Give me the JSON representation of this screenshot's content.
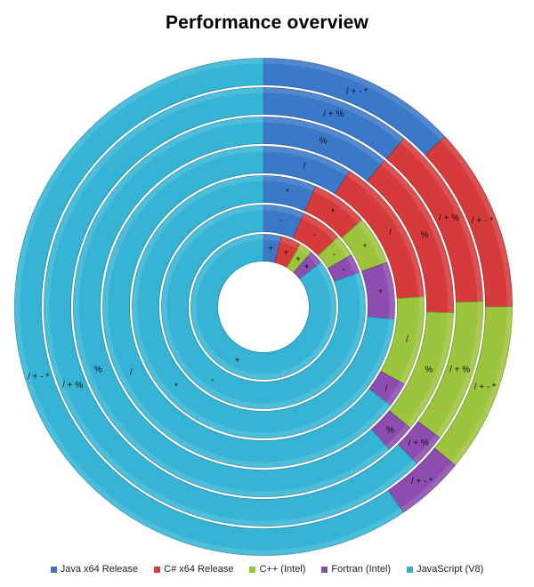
{
  "chart_data": {
    "type": "donut",
    "title": "Performance overview",
    "categories": [
      "+",
      "-",
      "*",
      "/",
      "%",
      "/ + %",
      "/ + - *"
    ],
    "series": [
      {
        "name": "Java x64 Release",
        "color": "#3a78c8",
        "values": [
          4,
          6.5,
          6.5,
          9,
          11,
          11,
          13
        ]
      },
      {
        "name": "C# x64 Release",
        "color": "#d63a3a",
        "values": [
          4.5,
          6.5,
          7,
          15,
          14.5,
          13.5,
          12
        ]
      },
      {
        "name": "C++ (Intel)",
        "color": "#9cc43c",
        "values": [
          3,
          3.5,
          6,
          9,
          10.5,
          10.5,
          11
        ]
      },
      {
        "name": "Fortran (Intel)",
        "color": "#8c4cb0",
        "values": [
          3,
          3,
          7,
          2.5,
          2.5,
          2.5,
          4.5
        ]
      },
      {
        "name": "JavaScript (V8)",
        "color": "#35b4d6",
        "values": [
          85.5,
          80.5,
          73.5,
          64.5,
          61.5,
          62,
          59.5
        ]
      }
    ],
    "legend_position": "bottom",
    "grid": false
  }
}
